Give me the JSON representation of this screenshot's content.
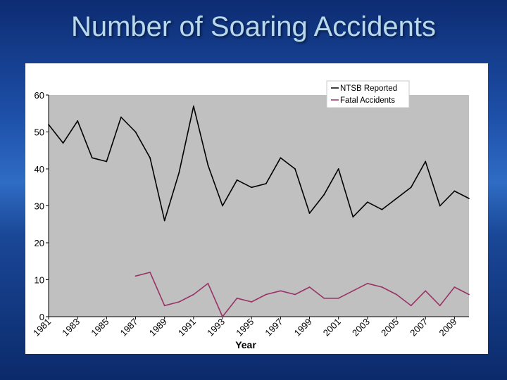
{
  "slide": {
    "title": "Number of Soaring Accidents"
  },
  "chart_data": {
    "type": "line",
    "xlabel": "Year",
    "ylabel": "",
    "ylim": [
      0,
      60
    ],
    "yticks": [
      0,
      10,
      20,
      30,
      40,
      50,
      60
    ],
    "xlim": [
      1981,
      2010
    ],
    "xticks": [
      1981,
      1983,
      1985,
      1987,
      1989,
      1991,
      1993,
      1995,
      1997,
      1999,
      2001,
      2003,
      2005,
      2007,
      2009
    ],
    "grid": false,
    "legend_position": "top-right",
    "plot_background": "#c0c0c0",
    "series": [
      {
        "name": "NTSB Reported",
        "color": "#000000",
        "points": [
          [
            1981,
            52
          ],
          [
            1982,
            47
          ],
          [
            1983,
            53
          ],
          [
            1984,
            43
          ],
          [
            1985,
            42
          ],
          [
            1986,
            54
          ],
          [
            1987,
            50
          ],
          [
            1988,
            43
          ],
          [
            1989,
            26
          ],
          [
            1990,
            39
          ],
          [
            1991,
            57
          ],
          [
            1992,
            41
          ],
          [
            1993,
            30
          ],
          [
            1994,
            37
          ],
          [
            1995,
            35
          ],
          [
            1996,
            36
          ],
          [
            1997,
            43
          ],
          [
            1998,
            40
          ],
          [
            1999,
            28
          ],
          [
            2000,
            33
          ],
          [
            2001,
            40
          ],
          [
            2002,
            27
          ],
          [
            2003,
            31
          ],
          [
            2004,
            29
          ],
          [
            2005,
            32
          ],
          [
            2006,
            35
          ],
          [
            2007,
            42
          ],
          [
            2008,
            30
          ],
          [
            2009,
            34
          ],
          [
            2010,
            32
          ]
        ]
      },
      {
        "name": "Fatal Accidents",
        "color": "#993366",
        "points": [
          [
            1987,
            11
          ],
          [
            1988,
            12
          ],
          [
            1989,
            3
          ],
          [
            1990,
            4
          ],
          [
            1991,
            6
          ],
          [
            1992,
            9
          ],
          [
            1993,
            0
          ],
          [
            1994,
            5
          ],
          [
            1995,
            4
          ],
          [
            1996,
            6
          ],
          [
            1997,
            7
          ],
          [
            1998,
            6
          ],
          [
            1999,
            8
          ],
          [
            2000,
            5
          ],
          [
            2001,
            5
          ],
          [
            2002,
            7
          ],
          [
            2003,
            9
          ],
          [
            2004,
            8
          ],
          [
            2005,
            6
          ],
          [
            2006,
            3
          ],
          [
            2007,
            7
          ],
          [
            2008,
            3
          ],
          [
            2009,
            8
          ],
          [
            2010,
            6
          ]
        ]
      }
    ]
  }
}
